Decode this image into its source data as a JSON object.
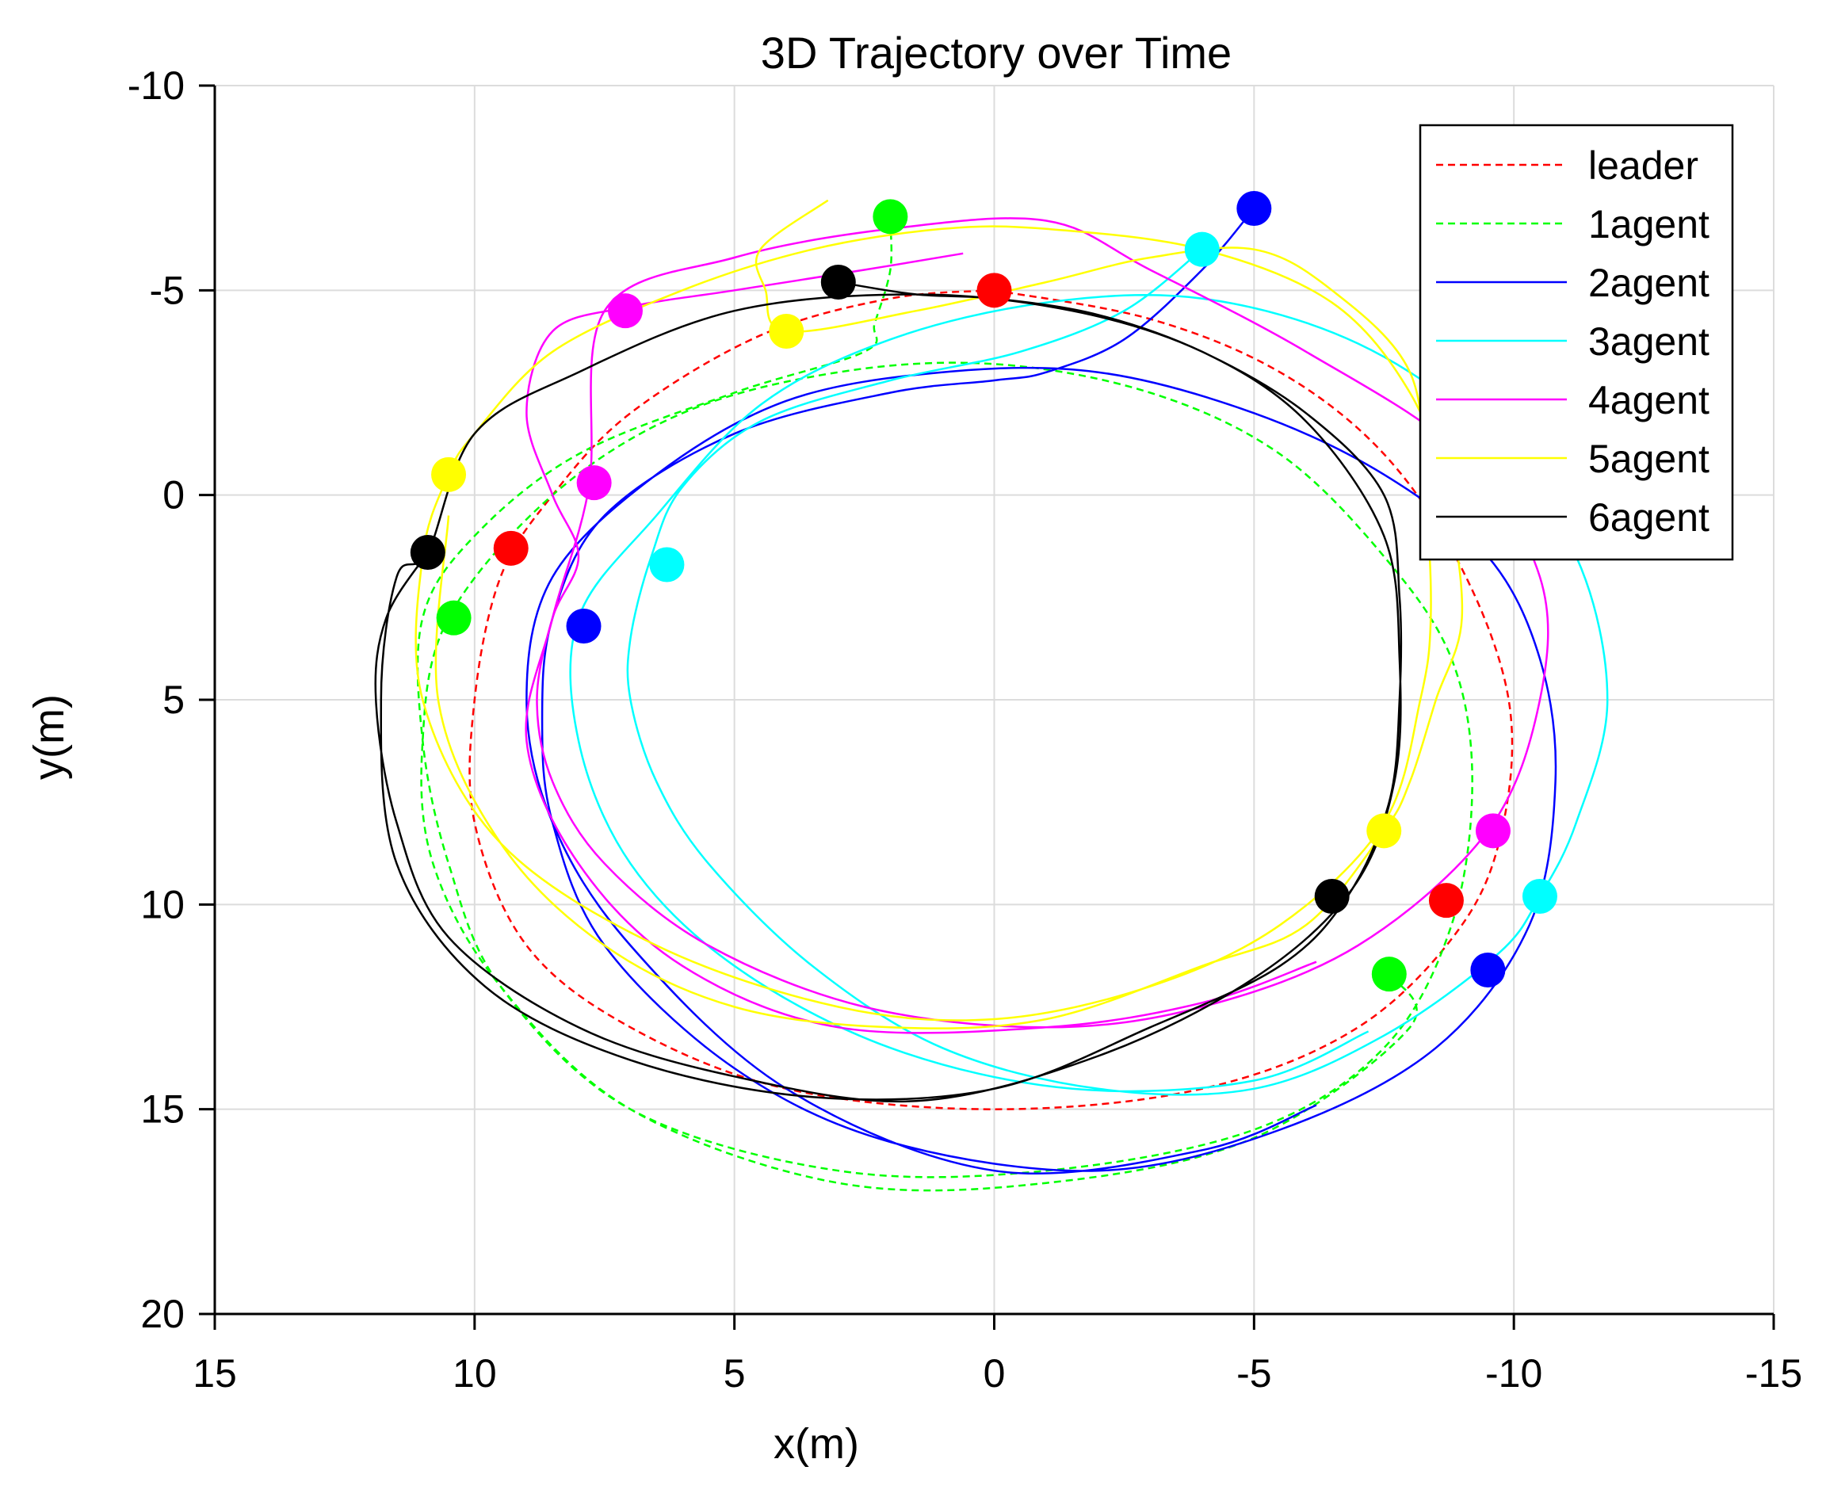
{
  "chart_data": {
    "type": "line",
    "title": "3D Trajectory over Time",
    "xlabel": "x(m)",
    "ylabel": "y(m)",
    "xlim": [
      15,
      -15
    ],
    "ylim": [
      -10,
      20
    ],
    "x_direction": "reversed",
    "y_direction": "reversed",
    "grid": true,
    "legend_position": "top-right",
    "xticks": [
      15,
      10,
      5,
      0,
      -5,
      -10,
      -15
    ],
    "yticks": [
      -10,
      -5,
      0,
      5,
      10,
      15,
      20
    ],
    "xtick_labels": [
      "15",
      "10",
      "5",
      "0",
      "-5",
      "-10",
      "-15"
    ],
    "ytick_labels": [
      "-10",
      "-5",
      "0",
      "5",
      "10",
      "15",
      "20"
    ],
    "series": [
      {
        "name": "leader",
        "color": "#ff0000",
        "style": "dashed",
        "points": [
          [
            0,
            -5
          ],
          [
            -3,
            -4.3
          ],
          [
            -5.5,
            -3
          ],
          [
            -7.5,
            -1
          ],
          [
            -9,
            1.8
          ],
          [
            -9.9,
            5
          ],
          [
            -9.8,
            8
          ],
          [
            -9,
            10.5
          ],
          [
            -7,
            13
          ],
          [
            -4,
            14.5
          ],
          [
            0,
            15
          ],
          [
            4,
            14.5
          ],
          [
            7,
            13
          ],
          [
            9,
            11
          ],
          [
            10,
            8
          ],
          [
            10,
            5
          ],
          [
            9.5,
            2
          ],
          [
            8.5,
            0
          ],
          [
            7,
            -2
          ],
          [
            4.5,
            -3.9
          ],
          [
            2,
            -4.8
          ],
          [
            0,
            -5
          ]
        ],
        "markers": [
          [
            0,
            -5
          ],
          [
            9.3,
            1.3
          ],
          [
            -8.7,
            9.9
          ]
        ]
      },
      {
        "name": "1agent",
        "color": "#00ff00",
        "style": "dashed",
        "points": [
          [
            2,
            -6.7
          ],
          [
            2,
            -5.5
          ],
          [
            2.3,
            -4.2
          ],
          [
            2.5,
            -3.5
          ],
          [
            5,
            -2.5
          ],
          [
            8,
            -1
          ],
          [
            10,
            1
          ],
          [
            11,
            3
          ],
          [
            11,
            6
          ],
          [
            10.5,
            9
          ],
          [
            9.5,
            12
          ],
          [
            7,
            15
          ],
          [
            3,
            16.5
          ],
          [
            -1,
            16.5
          ],
          [
            -5,
            15.5
          ],
          [
            -7.5,
            13.5
          ],
          [
            -8.8,
            10.5
          ],
          [
            -9.2,
            7
          ],
          [
            -8.8,
            4
          ],
          [
            -7.5,
            1.5
          ],
          [
            -5.5,
            -1
          ],
          [
            -3,
            -2.5
          ],
          [
            0,
            -3.2
          ],
          [
            3,
            -3
          ],
          [
            6,
            -2
          ],
          [
            8.5,
            0
          ],
          [
            10.5,
            3
          ],
          [
            11,
            6
          ],
          [
            10.8,
            9
          ],
          [
            9.5,
            12
          ],
          [
            7,
            15
          ],
          [
            3,
            16.8
          ],
          [
            -1,
            16.8
          ],
          [
            -5,
            15.7
          ],
          [
            -8,
            13
          ],
          [
            -7.6,
            11.7
          ]
        ],
        "markers": [
          [
            2,
            -6.8
          ],
          [
            10.4,
            3
          ],
          [
            -7.6,
            11.7
          ]
        ]
      },
      {
        "name": "2agent",
        "color": "#0000ff",
        "style": "solid",
        "points": [
          [
            -5,
            -7
          ],
          [
            -4,
            -5.5
          ],
          [
            -2.5,
            -3.8
          ],
          [
            -1,
            -3
          ],
          [
            0,
            -2.8
          ],
          [
            2,
            -2.5
          ],
          [
            5,
            -1.5
          ],
          [
            7.5,
            0.5
          ],
          [
            8.5,
            3
          ],
          [
            8.7,
            5.5
          ],
          [
            8.5,
            8
          ],
          [
            7.5,
            11
          ],
          [
            5,
            14
          ],
          [
            2,
            15.8
          ],
          [
            -2,
            16.5
          ],
          [
            -5.5,
            15.5
          ],
          [
            -8.5,
            13.5
          ],
          [
            -10.3,
            10.5
          ],
          [
            -10.8,
            7
          ],
          [
            -10.5,
            4
          ],
          [
            -9.5,
            1.5
          ],
          [
            -7.5,
            -0.5
          ],
          [
            -5,
            -2
          ],
          [
            -2,
            -3
          ],
          [
            1,
            -3
          ],
          [
            4,
            -2.3
          ],
          [
            6.5,
            -0.5
          ],
          [
            8.5,
            2
          ],
          [
            9,
            5
          ],
          [
            8.5,
            8
          ],
          [
            7,
            11
          ],
          [
            4,
            14.5
          ],
          [
            0,
            16.5
          ],
          [
            -4,
            16
          ],
          [
            -6.2,
            14.9
          ]
        ],
        "markers": [
          [
            -5,
            -7
          ],
          [
            7.9,
            3.2
          ],
          [
            -9.5,
            11.6
          ]
        ]
      },
      {
        "name": "3agent",
        "color": "#00ffff",
        "style": "solid",
        "points": [
          [
            -4,
            -6
          ],
          [
            -2.5,
            -4.5
          ],
          [
            -0.5,
            -3.5
          ],
          [
            2,
            -2.8
          ],
          [
            4.5,
            -1.8
          ],
          [
            6,
            -0.2
          ],
          [
            6.6,
            1.5
          ],
          [
            7,
            3.5
          ],
          [
            7,
            5
          ],
          [
            6.5,
            7
          ],
          [
            5.5,
            9
          ],
          [
            3.5,
            11.5
          ],
          [
            1,
            13.5
          ],
          [
            -2,
            14.5
          ],
          [
            -5,
            14.5
          ],
          [
            -7.5,
            13.2
          ],
          [
            -9.7,
            11.2
          ],
          [
            -10.5,
            9.8
          ],
          [
            -11.2,
            8
          ],
          [
            -11.8,
            5
          ],
          [
            -11.2,
            1.5
          ],
          [
            -9.5,
            -1.5
          ],
          [
            -7,
            -3.7
          ],
          [
            -4,
            -4.8
          ],
          [
            -1,
            -4.7
          ],
          [
            2,
            -3.8
          ],
          [
            4.5,
            -2.2
          ],
          [
            6.5,
            0.5
          ],
          [
            8,
            3
          ],
          [
            8,
            6
          ],
          [
            7,
            9
          ],
          [
            5,
            11.5
          ],
          [
            2,
            13.5
          ],
          [
            -1.5,
            14.5
          ],
          [
            -5,
            14.3
          ],
          [
            -7.2,
            13.1
          ]
        ],
        "markers": [
          [
            -4,
            -6
          ],
          [
            6.3,
            1.7
          ],
          [
            -10.5,
            9.8
          ]
        ]
      },
      {
        "name": "4agent",
        "color": "#ff00ff",
        "style": "solid",
        "points": [
          [
            0.6,
            -5.9
          ],
          [
            2.5,
            -5.5
          ],
          [
            5,
            -5
          ],
          [
            7,
            -4.6
          ],
          [
            8.5,
            -4
          ],
          [
            9,
            -2
          ],
          [
            8.5,
            0
          ],
          [
            8,
            1.5
          ],
          [
            8.5,
            3
          ],
          [
            8.8,
            5
          ],
          [
            8.5,
            7
          ],
          [
            7.5,
            9
          ],
          [
            5.5,
            11
          ],
          [
            2.5,
            12.5
          ],
          [
            -1,
            13
          ],
          [
            -4,
            12.5
          ],
          [
            -7,
            11
          ],
          [
            -9.5,
            8.2
          ],
          [
            -10.5,
            5
          ],
          [
            -10.5,
            2
          ],
          [
            -9,
            -1
          ],
          [
            -6,
            -3.5
          ],
          [
            -3,
            -5.5
          ],
          [
            -1,
            -6.7
          ],
          [
            2,
            -6.5
          ],
          [
            5,
            -5.8
          ],
          [
            7.5,
            -4.5
          ],
          [
            7.8,
            -0.2
          ],
          [
            8.5,
            3
          ],
          [
            9,
            6
          ],
          [
            8,
            9
          ],
          [
            6,
            11.5
          ],
          [
            3,
            13
          ],
          [
            -1,
            13
          ],
          [
            -4,
            12.4
          ],
          [
            -6.2,
            11.4
          ]
        ],
        "markers": [
          [
            7.1,
            -4.5
          ],
          [
            7.7,
            -0.3
          ],
          [
            -9.6,
            8.2
          ]
        ]
      },
      {
        "name": "5agent",
        "color": "#ffff00",
        "style": "solid",
        "points": [
          [
            3.2,
            -7.2
          ],
          [
            4.5,
            -6
          ],
          [
            4.4,
            -5
          ],
          [
            4,
            -4
          ],
          [
            1.5,
            -4.5
          ],
          [
            -1,
            -5.2
          ],
          [
            -3,
            -5.8
          ],
          [
            -5,
            -6
          ],
          [
            -6.5,
            -5
          ],
          [
            -8,
            -3
          ],
          [
            -8.3,
            0
          ],
          [
            -8.4,
            3
          ],
          [
            -8.2,
            5
          ],
          [
            -7.5,
            8
          ],
          [
            -5.5,
            10.5
          ],
          [
            -3,
            12
          ],
          [
            0,
            12.8
          ],
          [
            3,
            12.5
          ],
          [
            6.5,
            11
          ],
          [
            9.5,
            8.5
          ],
          [
            11,
            5
          ],
          [
            11,
            1.5
          ],
          [
            10.5,
            -0.5
          ],
          [
            10,
            -1.5
          ],
          [
            8.5,
            -3.5
          ],
          [
            6,
            -5
          ],
          [
            3.5,
            -6
          ],
          [
            1,
            -6.5
          ],
          [
            -1,
            -6.5
          ],
          [
            -4,
            -6
          ],
          [
            -6.5,
            -4.7
          ],
          [
            -8,
            -2.5
          ],
          [
            -8.7,
            0
          ],
          [
            -9,
            3
          ],
          [
            -8.5,
            5
          ],
          [
            -8,
            7
          ],
          [
            -7.5,
            8.2
          ],
          [
            -6,
            10.5
          ],
          [
            -4,
            11.5
          ],
          [
            -1,
            12.8
          ],
          [
            2,
            13
          ],
          [
            5,
            12.5
          ],
          [
            7.5,
            11
          ],
          [
            9.5,
            8.5
          ],
          [
            10.7,
            5
          ],
          [
            10.5,
            0.5
          ]
        ],
        "markers": [
          [
            10.5,
            -0.5
          ],
          [
            4,
            -4
          ],
          [
            -7.5,
            8.2
          ]
        ]
      },
      {
        "name": "6agent",
        "color": "#000000",
        "style": "solid",
        "points": [
          [
            3,
            -5.2
          ],
          [
            1.5,
            -4.9
          ],
          [
            0,
            -4.8
          ],
          [
            -2,
            -4.4
          ],
          [
            -4,
            -3.5
          ],
          [
            -6,
            -2
          ],
          [
            -7.5,
            0
          ],
          [
            -7.8,
            2.5
          ],
          [
            -7.8,
            5
          ],
          [
            -7.6,
            7.5
          ],
          [
            -6.8,
            9.8
          ],
          [
            -5.5,
            11.5
          ],
          [
            -3,
            13
          ],
          [
            0,
            14.5
          ],
          [
            3.5,
            14.7
          ],
          [
            7,
            13.8
          ],
          [
            9.8,
            12
          ],
          [
            11.5,
            9
          ],
          [
            11.8,
            5
          ],
          [
            11.5,
            2
          ],
          [
            10.9,
            1.4
          ],
          [
            10,
            -1.5
          ],
          [
            8,
            -3
          ],
          [
            5,
            -4.5
          ],
          [
            1.5,
            -4.9
          ],
          [
            -1.5,
            -4.5
          ],
          [
            -4,
            -3.5
          ],
          [
            -6,
            -1.8
          ],
          [
            -7.5,
            1
          ],
          [
            -7.8,
            4
          ],
          [
            -7.7,
            7
          ],
          [
            -6.9,
            9.6
          ],
          [
            -5,
            11.8
          ],
          [
            -2,
            13.7
          ],
          [
            1.5,
            14.8
          ],
          [
            5,
            14.2
          ],
          [
            8,
            13
          ],
          [
            10.5,
            10.8
          ],
          [
            11.5,
            8
          ],
          [
            11.9,
            5
          ],
          [
            11.7,
            3
          ],
          [
            10.9,
            1.4
          ]
        ],
        "markers": [
          [
            3,
            -5.2
          ],
          [
            10.9,
            1.4
          ],
          [
            -6.5,
            9.8
          ]
        ]
      }
    ]
  }
}
